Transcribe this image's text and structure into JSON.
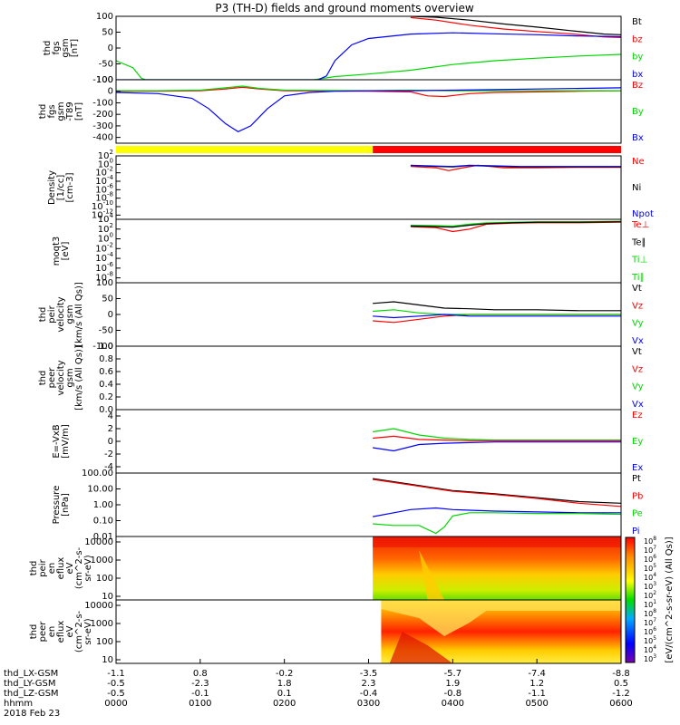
{
  "title": "P3 (TH-D) fields and ground moments overview",
  "colors": {
    "black": "#000000",
    "red": "#ff0000",
    "green": "#00d800",
    "blue": "#0000ff",
    "yellow": "#ffff00"
  },
  "chart_data": [
    {
      "type": "line",
      "ylabel": [
        "thd",
        "fgs",
        "gsm",
        "[nT]"
      ],
      "yticks": [
        "100",
        "50",
        "0",
        "-50",
        "-100"
      ],
      "ylim": [
        -100,
        100
      ],
      "legend": [
        {
          "name": "Bt",
          "color": "black"
        },
        {
          "name": "bz",
          "color": "red"
        },
        {
          "name": "by",
          "color": "green"
        },
        {
          "name": "bx",
          "color": "blue"
        }
      ],
      "series": [
        {
          "name": "Bt",
          "color": "black",
          "x": [
            3.5,
            3.8,
            4.2,
            4.6,
            5.0,
            5.4,
            5.8,
            6.0
          ],
          "y": [
            100,
            97,
            88,
            76,
            66,
            55,
            44,
            42
          ]
        },
        {
          "name": "bz",
          "color": "red",
          "x": [
            3.5,
            3.8,
            4.2,
            4.6,
            5.0,
            5.4,
            5.8,
            6.0
          ],
          "y": [
            96,
            88,
            72,
            60,
            52,
            45,
            35,
            33
          ]
        },
        {
          "name": "by",
          "color": "green",
          "x": [
            0.0,
            0.2,
            0.3,
            0.35,
            2.35,
            2.6,
            3.0,
            3.5,
            4.0,
            4.5,
            5.0,
            5.5,
            6.0
          ],
          "y": [
            -40,
            -62,
            -95,
            -100,
            -100,
            -90,
            -82,
            -70,
            -52,
            -40,
            -32,
            -25,
            -20
          ]
        },
        {
          "name": "bx",
          "color": "blue",
          "x": [
            0.0,
            0.25,
            0.3,
            0.35,
            1.4,
            2.0,
            2.4,
            2.5,
            2.6,
            2.8,
            3.0,
            3.5,
            4.0,
            4.5,
            5.0,
            5.5,
            6.0
          ],
          "y": [
            -100,
            -100,
            -100,
            -100,
            -100,
            -100,
            -100,
            -88,
            -40,
            10,
            30,
            44,
            48,
            45,
            42,
            38,
            36
          ]
        }
      ]
    },
    {
      "type": "line",
      "ylabel": [
        "thd",
        "fgs",
        "gsm",
        "-T89",
        "[nT]"
      ],
      "yticks": [
        "100",
        "0",
        "-100",
        "-200",
        "-300",
        "-400"
      ],
      "ylim": [
        -450,
        100
      ],
      "legend": [
        {
          "name": "Bz",
          "color": "red"
        },
        {
          "name": "By",
          "color": "green"
        },
        {
          "name": "Bx",
          "color": "blue"
        }
      ],
      "series": [
        {
          "name": "Bz",
          "color": "red",
          "x": [
            0.0,
            0.5,
            1.0,
            1.3,
            1.5,
            1.7,
            2.0,
            3.0,
            3.5,
            3.7,
            3.9,
            4.2,
            4.5,
            5.0,
            5.5,
            6.0
          ],
          "y": [
            0,
            0,
            5,
            20,
            35,
            20,
            5,
            0,
            -5,
            -40,
            -45,
            -20,
            -10,
            -5,
            0,
            5
          ]
        },
        {
          "name": "By",
          "color": "green",
          "x": [
            0.0,
            0.5,
            1.0,
            1.3,
            1.5,
            1.7,
            2.0,
            3.0,
            3.5,
            4.0,
            5.0,
            6.0
          ],
          "y": [
            5,
            5,
            10,
            30,
            45,
            25,
            10,
            5,
            10,
            5,
            5,
            5
          ]
        },
        {
          "name": "Bx",
          "color": "blue",
          "x": [
            0.0,
            0.5,
            0.9,
            1.1,
            1.3,
            1.45,
            1.6,
            1.8,
            2.0,
            2.3,
            2.6,
            3.0,
            3.5,
            4.0,
            5.0,
            6.0
          ],
          "y": [
            -10,
            -20,
            -60,
            -150,
            -280,
            -350,
            -300,
            -150,
            -40,
            -10,
            0,
            5,
            5,
            10,
            20,
            30
          ]
        }
      ]
    },
    {
      "type": "bar",
      "ylabel": [],
      "segments": [
        {
          "from": 0.0,
          "to": 3.05,
          "color": "yellow"
        },
        {
          "from": 3.05,
          "to": 6.0,
          "color": "red"
        }
      ]
    },
    {
      "type": "line",
      "ylabel": [
        "Density",
        "[1/cc]",
        "[cm-3]"
      ],
      "yticks": [
        "10^2",
        "10^0",
        "10^-2",
        "10^-4",
        "10^-6",
        "10^-8",
        "10^-10",
        "10^-12"
      ],
      "log": true,
      "ylim": [
        -13,
        2
      ],
      "legend": [
        {
          "name": "Ne",
          "color": "red"
        },
        {
          "name": "Ni",
          "color": "black"
        },
        {
          "name": "Npot",
          "color": "blue"
        }
      ],
      "series": [
        {
          "name": "Ne",
          "color": "red",
          "x": [
            3.5,
            3.8,
            3.95,
            4.1,
            4.3,
            4.6,
            5.0,
            5.5,
            6.0
          ],
          "y": [
            -0.5,
            -0.8,
            -1.5,
            -0.9,
            -0.2,
            -0.8,
            -0.8,
            -0.7,
            -0.7
          ]
        },
        {
          "name": "Ni",
          "color": "black",
          "x": [
            3.5,
            3.8,
            4.0,
            4.2,
            4.4,
            4.8,
            5.2,
            5.6,
            6.0
          ],
          "y": [
            -0.3,
            -0.5,
            -0.6,
            -0.3,
            -0.4,
            -0.6,
            -0.6,
            -0.6,
            -0.6
          ]
        },
        {
          "name": "Npot",
          "color": "blue",
          "x": [
            3.5,
            3.8,
            4.0,
            4.2,
            4.4,
            4.8,
            5.2,
            5.6,
            6.0
          ],
          "y": [
            -0.2,
            -0.4,
            -0.5,
            -0.2,
            -0.3,
            -0.5,
            -0.5,
            -0.5,
            -0.5
          ]
        }
      ]
    },
    {
      "type": "line",
      "ylabel": [
        "moqt3",
        "[eV]"
      ],
      "yticks": [
        "10^4",
        "10^2",
        "10^0",
        "10^-2",
        "10^-4",
        "10^-6",
        "10^-8"
      ],
      "log": true,
      "ylim": [
        -9,
        4
      ],
      "legend": [
        {
          "name": "Te⊥",
          "color": "red"
        },
        {
          "name": "Te∥",
          "color": "black"
        },
        {
          "name": "Ti⊥",
          "color": "green"
        },
        {
          "name": "Ti∥",
          "color": "green"
        }
      ],
      "series": [
        {
          "name": "Te⊥",
          "color": "red",
          "x": [
            3.5,
            3.8,
            4.0,
            4.2,
            4.4,
            4.7,
            5.0,
            5.5,
            6.0
          ],
          "y": [
            2.5,
            2.3,
            1.5,
            2.0,
            3.0,
            3.2,
            3.3,
            3.3,
            3.4
          ]
        },
        {
          "name": "Ti⊥",
          "color": "green",
          "x": [
            3.5,
            3.8,
            4.0,
            4.2,
            4.4,
            4.7,
            5.0,
            5.5,
            6.0
          ],
          "y": [
            2.8,
            2.7,
            2.6,
            3.0,
            3.3,
            3.4,
            3.5,
            3.5,
            3.6
          ]
        },
        {
          "name": "Te∥",
          "color": "black",
          "x": [
            3.5,
            3.8,
            4.0,
            4.2,
            4.4,
            4.7,
            5.0,
            5.5,
            6.0
          ],
          "y": [
            2.6,
            2.5,
            2.4,
            2.8,
            3.1,
            3.3,
            3.4,
            3.4,
            3.5
          ]
        }
      ]
    },
    {
      "type": "line",
      "ylabel": [
        "thd",
        "peir",
        "velocity",
        "gsm",
        "[km/s (All Qs)]"
      ],
      "yticks": [
        "100",
        "50",
        "0",
        "-50",
        "-100"
      ],
      "ylim": [
        -100,
        100
      ],
      "legend": [
        {
          "name": "Vt",
          "color": "black"
        },
        {
          "name": "Vz",
          "color": "red"
        },
        {
          "name": "Vy",
          "color": "green"
        },
        {
          "name": "Vx",
          "color": "blue"
        }
      ],
      "series": [
        {
          "name": "Vt",
          "color": "black",
          "x": [
            3.05,
            3.3,
            3.6,
            3.9,
            4.2,
            4.5,
            5.0,
            5.5,
            6.0
          ],
          "y": [
            35,
            40,
            30,
            20,
            18,
            15,
            15,
            12,
            12
          ]
        },
        {
          "name": "Vz",
          "color": "red",
          "x": [
            3.05,
            3.3,
            3.6,
            3.9,
            4.2,
            4.5,
            5.0,
            5.5,
            6.0
          ],
          "y": [
            -20,
            -25,
            -15,
            -5,
            0,
            0,
            0,
            0,
            0
          ]
        },
        {
          "name": "Vy",
          "color": "green",
          "x": [
            3.05,
            3.3,
            3.6,
            3.9,
            4.2,
            4.5,
            5.0,
            5.5,
            6.0
          ],
          "y": [
            10,
            15,
            5,
            0,
            0,
            0,
            0,
            0,
            0
          ]
        },
        {
          "name": "Vx",
          "color": "blue",
          "x": [
            3.05,
            3.3,
            3.6,
            3.9,
            4.2,
            4.5,
            5.0,
            5.5,
            6.0
          ],
          "y": [
            -5,
            -10,
            -5,
            0,
            -5,
            -5,
            -5,
            -5,
            -5
          ]
        }
      ]
    },
    {
      "type": "line",
      "ylabel": [
        "thd",
        "peer",
        "velocity",
        "gsm",
        "[km/s (All Qs)]"
      ],
      "yticks": [
        "1.0",
        "0.8",
        "0.6",
        "0.4",
        "0.2",
        "0.0"
      ],
      "ylim": [
        0,
        1
      ],
      "legend": [
        {
          "name": "Vt",
          "color": "black"
        },
        {
          "name": "Vz",
          "color": "red"
        },
        {
          "name": "Vy",
          "color": "green"
        },
        {
          "name": "Vx",
          "color": "blue"
        }
      ],
      "series": []
    },
    {
      "type": "line",
      "ylabel": [
        "E=-VxB",
        "[mV/m]"
      ],
      "yticks": [
        "4",
        "2",
        "0",
        "-2",
        "-4"
      ],
      "ylim": [
        -5,
        5
      ],
      "legend": [
        {
          "name": "Ez",
          "color": "red"
        },
        {
          "name": "Ey",
          "color": "green"
        },
        {
          "name": "Ex",
          "color": "blue"
        }
      ],
      "series": [
        {
          "name": "Ey",
          "color": "green",
          "x": [
            3.05,
            3.3,
            3.6,
            3.9,
            4.2,
            4.5,
            5.0,
            5.5,
            6.0
          ],
          "y": [
            1.5,
            2.0,
            1.0,
            0.5,
            0.3,
            0.2,
            0.2,
            0.2,
            0.2
          ]
        },
        {
          "name": "Ez",
          "color": "red",
          "x": [
            3.05,
            3.3,
            3.6,
            3.9,
            4.2,
            4.5,
            5.0,
            5.5,
            6.0
          ],
          "y": [
            0.5,
            0.8,
            0.3,
            0.2,
            0.1,
            0.1,
            0.1,
            0.1,
            0.1
          ]
        },
        {
          "name": "Ex",
          "color": "blue",
          "x": [
            3.05,
            3.3,
            3.6,
            3.9,
            4.2,
            4.5,
            5.0,
            5.5,
            6.0
          ],
          "y": [
            -1.0,
            -1.5,
            -0.5,
            -0.3,
            -0.2,
            -0.1,
            -0.1,
            -0.1,
            -0.1
          ]
        }
      ]
    },
    {
      "type": "line",
      "ylabel": [
        "Pressure",
        "[nPa]"
      ],
      "yticks": [
        "100.00",
        "10.00",
        "1.00",
        "0.10",
        "0.01"
      ],
      "log": true,
      "ylim": [
        -2,
        2
      ],
      "legend": [
        {
          "name": "Pt",
          "color": "black"
        },
        {
          "name": "Pb",
          "color": "red"
        },
        {
          "name": "Pe",
          "color": "green"
        },
        {
          "name": "Pi",
          "color": "blue"
        }
      ],
      "series": [
        {
          "name": "Pt",
          "color": "black",
          "x": [
            3.05,
            3.5,
            4.0,
            4.5,
            5.0,
            5.5,
            6.0
          ],
          "y": [
            1.65,
            1.3,
            0.9,
            0.7,
            0.45,
            0.2,
            0.1
          ]
        },
        {
          "name": "Pb",
          "color": "red",
          "x": [
            3.05,
            3.5,
            4.0,
            4.5,
            5.0,
            5.5,
            6.0
          ],
          "y": [
            1.6,
            1.25,
            0.85,
            0.65,
            0.4,
            0.1,
            -0.1
          ]
        },
        {
          "name": "Pi",
          "color": "blue",
          "x": [
            3.05,
            3.3,
            3.5,
            3.8,
            4.0,
            4.5,
            5.0,
            5.5,
            6.0
          ],
          "y": [
            -0.75,
            -0.5,
            -0.3,
            -0.2,
            -0.3,
            -0.4,
            -0.45,
            -0.5,
            -0.5
          ]
        },
        {
          "name": "Pe",
          "color": "green",
          "x": [
            3.05,
            3.3,
            3.6,
            3.8,
            3.9,
            4.0,
            4.2,
            4.5,
            5.0,
            5.5,
            6.0
          ],
          "y": [
            -1.2,
            -1.3,
            -1.3,
            -1.8,
            -1.4,
            -0.7,
            -0.5,
            -0.5,
            -0.55,
            -0.55,
            -0.6
          ]
        }
      ]
    },
    {
      "type": "heatmap",
      "ylabel": [
        "thd",
        "peir",
        "en",
        "eflux",
        "eV",
        "(cm^2-s-",
        "sr-eV)"
      ],
      "yticks": [
        "10000",
        "1000",
        "100",
        "10"
      ],
      "log": true,
      "ylim": [
        0.8,
        4.3
      ],
      "x_start": 3.05,
      "x_end": 6.0
    },
    {
      "type": "heatmap",
      "ylabel": [
        "thd",
        "peer",
        "en",
        "eflux",
        "eV",
        "(cm^2-s-",
        "sr-eV)"
      ],
      "yticks": [
        "10000",
        "1000",
        "100",
        "10"
      ],
      "log": true,
      "ylim": [
        0.8,
        4.3
      ],
      "x_start": 3.15,
      "x_end": 6.0
    }
  ],
  "colorbar": {
    "label": "[eV/(cm^2-s-sr-eV) (All Qs)]",
    "ticks": [
      "10^8",
      "10^7",
      "10^6",
      "10^5",
      "10^4",
      "10^3",
      "10^2",
      "10^1",
      "10^8",
      "10^7",
      "10^6",
      "10^5",
      "10^4",
      "10^3"
    ]
  },
  "xaxis": {
    "labels": [
      "thd_LX-GSM",
      "thd_LY-GSM",
      "thd_LZ-GSM",
      "hhmm",
      "2018 Feb 23"
    ],
    "columns": [
      [
        "-1.1",
        "-0.5",
        "-0.5",
        "0000"
      ],
      [
        "0.8",
        "-2.3",
        "-0.1",
        "0100"
      ],
      [
        "-0.2",
        "1.8",
        "0.1",
        "0200"
      ],
      [
        "-3.5",
        "2.3",
        "-0.4",
        "0300"
      ],
      [
        "-5.7",
        "1.9",
        "-0.8",
        "0400"
      ],
      [
        "-7.4",
        "1.2",
        "-1.1",
        "0500"
      ],
      [
        "-8.8",
        "0.5",
        "-1.2",
        "0600"
      ]
    ]
  }
}
